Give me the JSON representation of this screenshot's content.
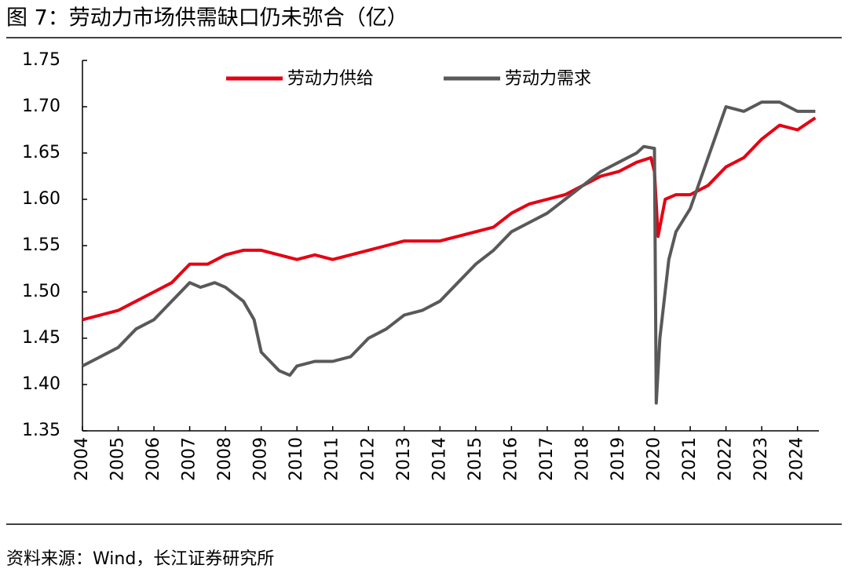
{
  "chart_data": {
    "type": "line",
    "title": "图 7：劳动力市场供需缺口仍未弥合（亿）",
    "source": "资料来源：Wind，长江证券研究所",
    "xlim": [
      2004,
      2024.6
    ],
    "xticks": [
      2004,
      2005,
      2006,
      2007,
      2008,
      2009,
      2010,
      2011,
      2012,
      2013,
      2014,
      2015,
      2016,
      2017,
      2018,
      2019,
      2020,
      2021,
      2022,
      2023,
      2024
    ],
    "ylim": [
      1.35,
      1.75
    ],
    "yticks": [
      1.35,
      {
        "value": 1.4,
        "label": "1.40"
      },
      1.45,
      {
        "value": 1.5,
        "label": "1.50"
      },
      1.55,
      {
        "value": 1.6,
        "label": "1.60"
      },
      1.65,
      {
        "value": 1.7,
        "label": "1.70"
      },
      1.75
    ],
    "grid": false,
    "legend": "top",
    "series": [
      {
        "name": "劳动力供给",
        "color": "#e60012",
        "x": [
          2004,
          2004.5,
          2005,
          2005.5,
          2006,
          2006.5,
          2007,
          2007.5,
          2008,
          2008.5,
          2009,
          2009.5,
          2010,
          2010.5,
          2011,
          2011.5,
          2012,
          2012.5,
          2013,
          2013.5,
          2014,
          2014.5,
          2015,
          2015.5,
          2016,
          2016.5,
          2017,
          2017.5,
          2018,
          2018.5,
          2019,
          2019.5,
          2019.9,
          2020.0,
          2020.1,
          2020.3,
          2020.6,
          2021,
          2021.5,
          2022,
          2022.5,
          2023,
          2023.5,
          2024,
          2024.5
        ],
        "values": [
          1.47,
          1.475,
          1.48,
          1.49,
          1.5,
          1.51,
          1.53,
          1.53,
          1.54,
          1.545,
          1.545,
          1.54,
          1.535,
          1.54,
          1.535,
          1.54,
          1.545,
          1.55,
          1.555,
          1.555,
          1.555,
          1.56,
          1.565,
          1.57,
          1.585,
          1.595,
          1.6,
          1.605,
          1.615,
          1.625,
          1.63,
          1.64,
          1.645,
          1.63,
          1.56,
          1.6,
          1.605,
          1.605,
          1.615,
          1.635,
          1.645,
          1.665,
          1.68,
          1.675,
          1.688
        ]
      },
      {
        "name": "劳动力需求",
        "color": "#595959",
        "x": [
          2004,
          2004.5,
          2005,
          2005.5,
          2006,
          2006.5,
          2007,
          2007.3,
          2007.7,
          2008,
          2008.5,
          2008.8,
          2009,
          2009.5,
          2009.8,
          2010,
          2010.5,
          2011,
          2011.5,
          2012,
          2012.5,
          2013,
          2013.5,
          2014,
          2014.5,
          2015,
          2015.5,
          2016,
          2016.5,
          2017,
          2017.5,
          2018,
          2018.5,
          2019,
          2019.5,
          2019.7,
          2020.0,
          2020.05,
          2020.15,
          2020.4,
          2020.6,
          2021,
          2021.5,
          2022,
          2022.5,
          2023,
          2023.5,
          2024,
          2024.5
        ],
        "values": [
          1.42,
          1.43,
          1.44,
          1.46,
          1.47,
          1.49,
          1.51,
          1.505,
          1.51,
          1.505,
          1.49,
          1.47,
          1.435,
          1.415,
          1.41,
          1.42,
          1.425,
          1.425,
          1.43,
          1.45,
          1.46,
          1.475,
          1.48,
          1.49,
          1.51,
          1.53,
          1.545,
          1.565,
          1.575,
          1.585,
          1.6,
          1.615,
          1.63,
          1.64,
          1.65,
          1.657,
          1.655,
          1.38,
          1.45,
          1.535,
          1.565,
          1.59,
          1.645,
          1.7,
          1.695,
          1.705,
          1.705,
          1.695,
          1.695
        ]
      }
    ]
  }
}
